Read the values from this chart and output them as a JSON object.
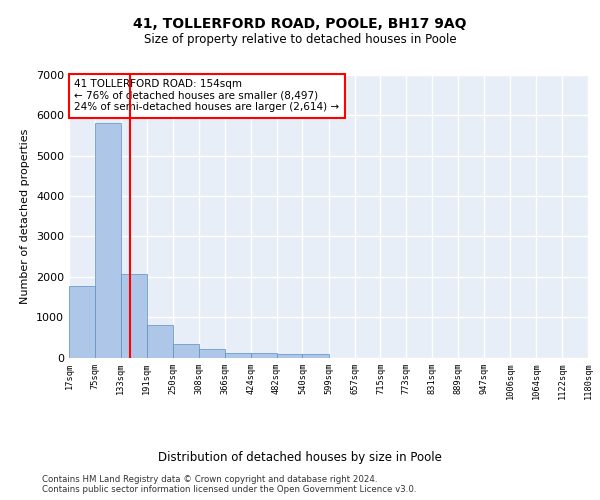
{
  "title": "41, TOLLERFORD ROAD, POOLE, BH17 9AQ",
  "subtitle": "Size of property relative to detached houses in Poole",
  "xlabel": "Distribution of detached houses by size in Poole",
  "ylabel": "Number of detached properties",
  "bar_color": "#aec6e8",
  "bar_edge_color": "#5a8fc2",
  "annotation_line1": "41 TOLLERFORD ROAD: 154sqm",
  "annotation_line2": "← 76% of detached houses are smaller (8,497)",
  "annotation_line3": "24% of semi-detached houses are larger (2,614) →",
  "red_line_x": 154,
  "footnote1": "Contains HM Land Registry data © Crown copyright and database right 2024.",
  "footnote2": "Contains public sector information licensed under the Open Government Licence v3.0.",
  "bin_edges": [
    17,
    75,
    133,
    191,
    250,
    308,
    366,
    424,
    482,
    540,
    599,
    657,
    715,
    773,
    831,
    889,
    947,
    1006,
    1064,
    1122,
    1180
  ],
  "bar_heights": [
    1780,
    5800,
    2080,
    800,
    340,
    200,
    115,
    100,
    85,
    75,
    0,
    0,
    0,
    0,
    0,
    0,
    0,
    0,
    0,
    0
  ],
  "ylim": [
    0,
    7000
  ],
  "background_color": "#e8eef7",
  "grid_color": "#ffffff",
  "fig_background": "#ffffff"
}
